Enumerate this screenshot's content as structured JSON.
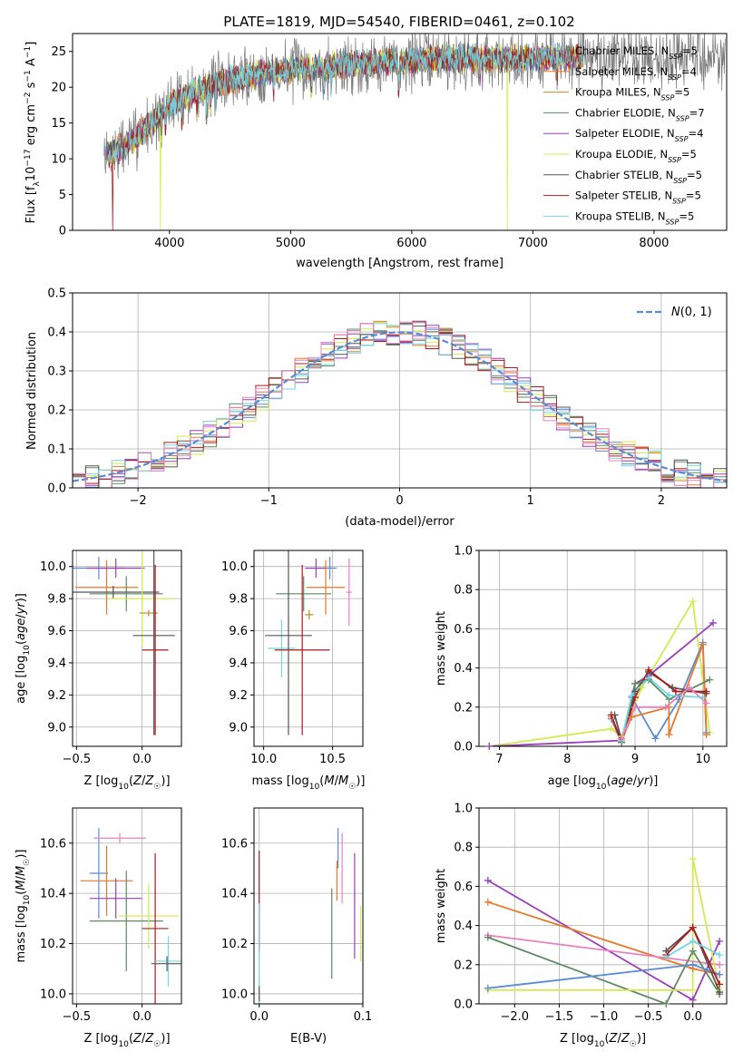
{
  "figure": {
    "title": "PLATE=1819, MJD=54540, FIBERID=0461, z=0.102"
  },
  "colors": {
    "Chabrier MILES": "#5b8bd6",
    "Salpeter MILES": "#e8782a",
    "Kroupa MILES": "#c58a2a",
    "Chabrier ELODIE": "#5e8a64",
    "Salpeter ELODIE": "#9a3fb8",
    "Kroupa ELODIE": "#d4ea4e",
    "Chabrier STELIB": "#555555",
    "Salpeter STELIB": "#b01818",
    "Kroupa STELIB": "#74d6e3",
    "extra": "#e880c0",
    "gaussian": "#5b8bd6"
  },
  "chart_data": [
    {
      "id": "spectrum",
      "type": "line",
      "title": "PLATE=1819, MJD=54540, FIBERID=0461, z=0.102",
      "xlabel": "wavelength [Angstrom, rest frame]",
      "ylabel": "Flux [f_λ 10^-17 erg cm^-2 s^-1 A^-1]",
      "xlim": [
        3200,
        8600
      ],
      "ylim": [
        0,
        27.5
      ],
      "xticks": [
        4000,
        5000,
        6000,
        7000,
        8000
      ],
      "yticks": [
        0,
        5,
        10,
        15,
        20,
        25
      ],
      "grid": false,
      "legend_position": "top-right",
      "legend": [
        {
          "base": "Chabrier MILES, N",
          "sub": "SSP",
          "tail": "=5"
        },
        {
          "base": "Salpeter MILES, N",
          "sub": "SSP",
          "tail": "=4"
        },
        {
          "base": "Kroupa MILES, N",
          "sub": "SSP",
          "tail": "=5"
        },
        {
          "base": "Chabrier ELODIE, N",
          "sub": "SSP",
          "tail": "=7"
        },
        {
          "base": "Salpeter ELODIE, N",
          "sub": "SSP",
          "tail": "=4"
        },
        {
          "base": "Kroupa ELODIE, N",
          "sub": "SSP",
          "tail": "=5"
        },
        {
          "base": "Chabrier STELIB, N",
          "sub": "SSP",
          "tail": "=5"
        },
        {
          "base": "Salpeter STELIB, N",
          "sub": "SSP",
          "tail": "=5"
        },
        {
          "base": "Kroupa STELIB, N",
          "sub": "SSP",
          "tail": "=5"
        }
      ],
      "continuum": {
        "x": [
          3460,
          3550,
          3650,
          3750,
          3850,
          3950,
          4000,
          4100,
          4200,
          4300,
          4400,
          4500,
          4600,
          4800,
          5000,
          5200,
          5500,
          5800,
          6000,
          6200,
          6500,
          6800,
          7000,
          7200,
          7500,
          7800,
          8100,
          8300,
          8590
        ],
        "y": [
          10.5,
          11,
          12,
          13.5,
          15,
          16.5,
          17.5,
          18.5,
          19.3,
          20,
          20.5,
          21,
          21.3,
          22,
          22.5,
          22.8,
          23.2,
          23.5,
          23.8,
          24,
          24,
          24,
          24,
          24.1,
          24.2,
          24.3,
          24.3,
          24.2,
          24.1
        ]
      },
      "model_range": [
        3470,
        7410
      ],
      "observed_range": [
        3460,
        8590
      ],
      "model_dropouts": [
        {
          "series": "Salpeter STELIB",
          "wavelength": 3530
        },
        {
          "series": "Kroupa ELODIE",
          "wavelength": 3925
        },
        {
          "series": "Kroupa ELODIE",
          "wavelength": 6790
        },
        {
          "series": "Salpeter STELIB",
          "wavelength": 7410
        }
      ]
    },
    {
      "id": "residuals",
      "type": "histogram",
      "xlabel": "(data-model)/error",
      "ylabel": "Normed distribution",
      "xlim": [
        -2.5,
        2.5
      ],
      "ylim": [
        0,
        0.5
      ],
      "xticks": [
        -2,
        -1,
        0,
        1,
        2
      ],
      "yticks": [
        0,
        0.1,
        0.2,
        0.3,
        0.4,
        0.5
      ],
      "grid": true,
      "legend_position": "top-right",
      "legend_label": "N(0,1)",
      "bin_width": 0.1,
      "gaussian": {
        "mean": 0,
        "sigma": 1
      }
    },
    {
      "id": "age-vs-Z",
      "type": "errorbar",
      "xlabel": "Z [log10(Z/Z☉)]",
      "ylabel": "age  [log10(age/yr)]",
      "xlim": [
        -0.53,
        0.3
      ],
      "ylim": [
        8.88,
        10.1
      ],
      "xticks": [
        -0.5,
        0.0
      ],
      "yticks": [
        9.0,
        9.2,
        9.4,
        9.6,
        9.8,
        10.0
      ],
      "grid": true,
      "points": [
        {
          "series": "Chabrier MILES",
          "x": -0.33,
          "xerr": 0.2,
          "y": 9.99,
          "yerr": 0.07
        },
        {
          "series": "Salpeter MILES",
          "x": -0.27,
          "xerr": 0.24,
          "y": 9.87,
          "yerr": 0.17
        },
        {
          "series": "Salpeter ELODIE",
          "x": -0.2,
          "xerr": 0.22,
          "y": 9.99,
          "yerr": 0.06
        },
        {
          "series": "Chabrier ELODIE",
          "x": -0.12,
          "xerr": 0.28,
          "y": 9.83,
          "yerr": 0.11
        },
        {
          "series": "Chabrier STELIB",
          "x": -0.22,
          "xerr": 0.35,
          "y": 9.84,
          "yerr": 0.04
        },
        {
          "series": "Kroupa ELODIE",
          "x": 0.0,
          "xerr": 0.25,
          "y": 9.8,
          "yerr": 0.3
        },
        {
          "series": "Kroupa MILES",
          "x": 0.05,
          "xerr": 0.07,
          "y": 9.71,
          "yerr": 0.02
        },
        {
          "series": "Salpeter STELIB",
          "x": 0.1,
          "xerr": 0.1,
          "y": 9.48,
          "yerr": 0.53
        },
        {
          "series": "Chabrier STELIB",
          "x": 0.09,
          "xerr": 0.16,
          "y": 9.57,
          "yerr": 0.62
        }
      ]
    },
    {
      "id": "age-vs-mass",
      "type": "errorbar",
      "xlabel": "mass [log10(M/M☉)]",
      "ylabel": "",
      "xlim": [
        9.93,
        10.72
      ],
      "ylim": [
        8.88,
        10.1
      ],
      "xticks": [
        10.0,
        10.5
      ],
      "yticks": [
        9.0,
        9.2,
        9.4,
        9.6,
        9.8,
        10.0
      ],
      "grid": true,
      "points": [
        {
          "series": "Chabrier ELODIE",
          "x": 10.29,
          "xerr": 0.2,
          "y": 9.83,
          "yerr": 0.11
        },
        {
          "series": "Chabrier MILES",
          "x": 10.48,
          "xerr": 0.05,
          "y": 9.99,
          "yerr": 0.07
        },
        {
          "series": "Salpeter ELODIE",
          "x": 10.38,
          "xerr": 0.08,
          "y": 9.99,
          "yerr": 0.06
        },
        {
          "series": "Salpeter MILES",
          "x": 10.45,
          "xerr": 0.14,
          "y": 9.87,
          "yerr": 0.17
        },
        {
          "series": "extra",
          "x": 10.62,
          "xerr": 0.02,
          "y": 9.84,
          "yerr": 0.21
        },
        {
          "series": "Kroupa MILES",
          "x": 10.33,
          "xerr": 0.03,
          "y": 9.7,
          "yerr": 0.03
        },
        {
          "series": "Kroupa STELIB",
          "x": 10.13,
          "xerr": 0.1,
          "y": 9.49,
          "yerr": 0.18
        },
        {
          "series": "Chabrier STELIB",
          "x": 10.18,
          "xerr": 0.17,
          "y": 9.57,
          "yerr": 0.62
        },
        {
          "series": "Salpeter STELIB",
          "x": 10.28,
          "xerr": 0.2,
          "y": 9.48,
          "yerr": 0.53
        }
      ]
    },
    {
      "id": "weight-vs-age",
      "type": "line",
      "xlabel": "age  [log10(age/yr)]",
      "ylabel": "mass weight",
      "xlim": [
        6.7,
        10.35
      ],
      "ylim": [
        0,
        1
      ],
      "xticks": [
        7,
        8,
        9,
        10
      ],
      "yticks": [
        0.0,
        0.2,
        0.4,
        0.6,
        0.8,
        1.0
      ],
      "grid": true,
      "series": [
        {
          "name": "Kroupa ELODIE",
          "x": [
            6.85,
            8.65,
            8.8,
            9.1,
            9.85,
            10.1
          ],
          "y": [
            0.0,
            0.09,
            0.05,
            0.3,
            0.74,
            0.07
          ]
        },
        {
          "name": "Salpeter ELODIE",
          "x": [
            6.85,
            8.8,
            9.0,
            9.2,
            10.15
          ],
          "y": [
            0.0,
            0.03,
            0.32,
            0.36,
            0.63
          ]
        },
        {
          "name": "Chabrier MILES",
          "x": [
            8.65,
            8.8,
            8.95,
            9.3,
            9.65,
            10.0,
            10.05
          ],
          "y": [
            0.14,
            0.02,
            0.25,
            0.04,
            0.24,
            0.53,
            0.07
          ]
        },
        {
          "name": "Salpeter MILES",
          "x": [
            8.65,
            8.8,
            8.95,
            9.5,
            9.5,
            10.0,
            10.05
          ],
          "y": [
            0.15,
            0.03,
            0.15,
            0.2,
            0.06,
            0.52,
            0.06
          ]
        },
        {
          "name": "Chabrier STELIB",
          "x": [
            8.7,
            8.8,
            9.0,
            9.2,
            9.55,
            10.05
          ],
          "y": [
            0.16,
            0.03,
            0.28,
            0.38,
            0.3,
            0.27
          ]
        },
        {
          "name": "Salpeter STELIB",
          "x": [
            8.65,
            8.8,
            9.0,
            9.2,
            9.6,
            10.05
          ],
          "y": [
            0.16,
            0.02,
            0.25,
            0.39,
            0.28,
            0.28
          ]
        },
        {
          "name": "Chabrier ELODIE",
          "x": [
            8.8,
            9.0,
            9.2,
            9.5,
            10.1
          ],
          "y": [
            0.02,
            0.32,
            0.34,
            0.24,
            0.34
          ]
        },
        {
          "name": "Kroupa STELIB",
          "x": [
            8.8,
            8.95,
            9.2,
            9.5,
            10.0
          ],
          "y": [
            0.03,
            0.26,
            0.35,
            0.26,
            0.25
          ]
        },
        {
          "name": "extra",
          "x": [
            8.8,
            9.0,
            9.45,
            9.8,
            10.05
          ],
          "y": [
            0.04,
            0.2,
            0.2,
            0.3,
            0.22
          ]
        }
      ]
    },
    {
      "id": "mass-vs-Z",
      "type": "errorbar",
      "xlabel": "Z [log10(Z/Z☉)]",
      "ylabel": "mass [log10(M/M☉)]",
      "xlim": [
        -0.53,
        0.3
      ],
      "ylim": [
        9.96,
        10.74
      ],
      "xticks": [
        -0.5,
        0.0
      ],
      "yticks": [
        10.0,
        10.2,
        10.4,
        10.6
      ],
      "grid": true,
      "points": [
        {
          "series": "Chabrier MILES",
          "x": -0.33,
          "xerr": 0.07,
          "y": 10.48,
          "yerr": 0.18
        },
        {
          "series": "extra",
          "x": -0.17,
          "xerr": 0.2,
          "y": 10.62,
          "yerr": 0.02
        },
        {
          "series": "Salpeter MILES",
          "x": -0.27,
          "xerr": 0.2,
          "y": 10.45,
          "yerr": 0.14
        },
        {
          "series": "Salpeter ELODIE",
          "x": -0.2,
          "xerr": 0.2,
          "y": 10.38,
          "yerr": 0.08
        },
        {
          "series": "Chabrier ELODIE",
          "x": -0.12,
          "xerr": 0.28,
          "y": 10.29,
          "yerr": 0.2
        },
        {
          "series": "Kroupa ELODIE",
          "x": 0.05,
          "xerr": 0.23,
          "y": 10.31,
          "yerr": 0.13
        },
        {
          "series": "Salpeter STELIB",
          "x": 0.1,
          "xerr": 0.1,
          "y": 10.26,
          "yerr": 0.3
        },
        {
          "series": "Kroupa STELIB",
          "x": 0.2,
          "xerr": 0.1,
          "y": 10.13,
          "yerr": 0.1
        },
        {
          "series": "Chabrier STELIB",
          "x": 0.19,
          "xerr": 0.12,
          "y": 10.12,
          "yerr": 0.03
        }
      ]
    },
    {
      "id": "mass-vs-EBV",
      "type": "errorbar",
      "xlabel": "E(B-V)",
      "ylabel": "",
      "xlim": [
        -0.005,
        0.1
      ],
      "ylim": [
        9.96,
        10.74
      ],
      "xticks": [
        0.0,
        0.1
      ],
      "yticks": [
        10.0,
        10.2,
        10.4,
        10.6
      ],
      "grid": true,
      "points": [
        {
          "series": "Salpeter STELIB",
          "x": 0.0,
          "xerr": 0,
          "y": 10.37,
          "yerr": 0.2
        },
        {
          "series": "Kroupa STELIB",
          "x": 0.0,
          "xerr": 0,
          "y": 10.16,
          "yerr": 0.2
        },
        {
          "series": "Chabrier STELIB",
          "x": 0.0,
          "xerr": 0,
          "y": 10.0,
          "yerr": 0.03
        },
        {
          "series": "Chabrier ELODIE",
          "x": 0.07,
          "xerr": 0,
          "y": 10.24,
          "yerr": 0.18
        },
        {
          "series": "Salpeter MILES",
          "x": 0.075,
          "xerr": 0,
          "y": 10.45,
          "yerr": 0.08
        },
        {
          "series": "Chabrier MILES",
          "x": 0.076,
          "xerr": 0,
          "y": 10.58,
          "yerr": 0.08
        },
        {
          "series": "extra",
          "x": 0.08,
          "xerr": 0,
          "y": 10.5,
          "yerr": 0.14
        },
        {
          "series": "Salpeter ELODIE",
          "x": 0.092,
          "xerr": 0,
          "y": 10.35,
          "yerr": 0.21
        },
        {
          "series": "Kroupa ELODIE",
          "x": 0.098,
          "xerr": 0,
          "y": 10.24,
          "yerr": 0.11
        }
      ]
    },
    {
      "id": "weight-vs-Z",
      "type": "line",
      "xlabel": "Z [log10(Z/Z☉)]",
      "ylabel": "mass weight",
      "xlim": [
        -2.4,
        0.38
      ],
      "ylim": [
        0,
        1
      ],
      "xticks": [
        -2.0,
        -1.5,
        -1.0,
        -0.5,
        0.0
      ],
      "yticks": [
        0.0,
        0.2,
        0.4,
        0.6,
        0.8,
        1.0
      ],
      "grid": true,
      "series": [
        {
          "name": "Salpeter ELODIE",
          "x": [
            -2.3,
            0.0,
            0.3
          ],
          "y": [
            0.63,
            0.02,
            0.32
          ]
        },
        {
          "name": "Salpeter MILES",
          "x": [
            -2.3,
            0.0,
            0.3
          ],
          "y": [
            0.52,
            0.18,
            0.15
          ]
        },
        {
          "name": "extra",
          "x": [
            -2.3,
            0.3
          ],
          "y": [
            0.35,
            0.2
          ]
        },
        {
          "name": "Chabrier ELODIE",
          "x": [
            -2.3,
            -0.3,
            0.0,
            0.3
          ],
          "y": [
            0.34,
            0.0,
            0.27,
            0.05
          ]
        },
        {
          "name": "Kroupa ELODIE",
          "x": [
            -2.3,
            0.0,
            0.0,
            0.3
          ],
          "y": [
            0.07,
            0.07,
            0.74,
            0.07
          ]
        },
        {
          "name": "Chabrier MILES",
          "x": [
            -2.3,
            0.0,
            0.3
          ],
          "y": [
            0.08,
            0.2,
            0.15
          ]
        },
        {
          "name": "Chabrier STELIB",
          "x": [
            -0.3,
            0.0,
            0.3
          ],
          "y": [
            0.27,
            0.39,
            0.06
          ]
        },
        {
          "name": "Salpeter STELIB",
          "x": [
            -0.3,
            0.0,
            0.3
          ],
          "y": [
            0.25,
            0.39,
            0.1
          ]
        },
        {
          "name": "Kroupa STELIB",
          "x": [
            -0.3,
            0.0,
            0.3
          ],
          "y": [
            0.24,
            0.32,
            0.25
          ]
        }
      ]
    }
  ]
}
